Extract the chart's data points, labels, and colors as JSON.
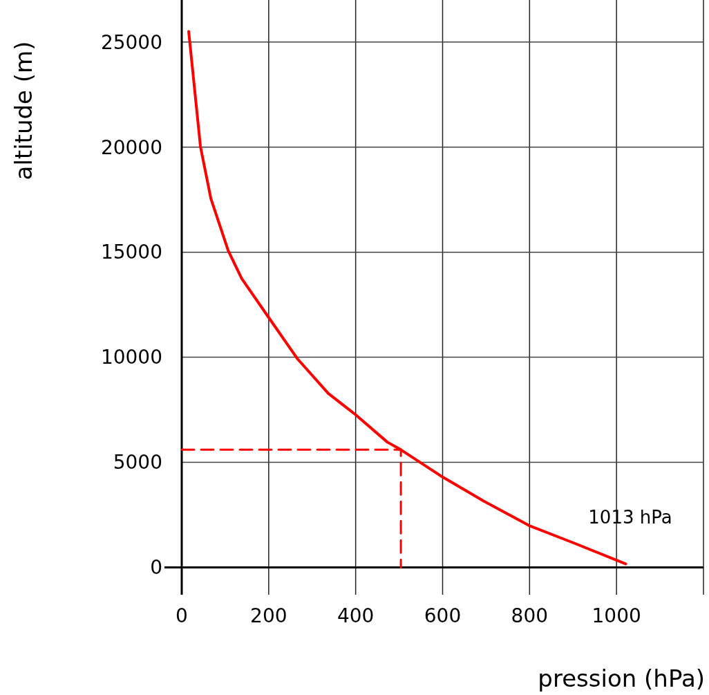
{
  "chart_data": {
    "type": "line",
    "xlabel": "pression (hPa)",
    "ylabel": "altitude (m)",
    "xlim": [
      0,
      1200
    ],
    "ylim": [
      -1300,
      27000
    ],
    "xticks": [
      0,
      200,
      400,
      600,
      800,
      1000,
      {
        "value": 1200,
        "label": null
      }
    ],
    "yticks": [
      0,
      5000,
      10000,
      15000,
      20000,
      25000
    ],
    "grid": true,
    "series": [
      {
        "color": "#ff0000",
        "x": [
          16,
          43,
          67,
          107,
          138,
          199,
          266,
          337,
          399,
          473,
          504,
          600,
          695,
          799,
          902,
          1021
        ],
        "values": [
          25500,
          20030,
          17550,
          15070,
          13740,
          11920,
          9930,
          8280,
          7280,
          5960,
          5600,
          4300,
          3150,
          1990,
          1160,
          170
        ],
        "line_style": "solid"
      },
      {
        "color": "#ff0000",
        "x": [
          0,
          504,
          504
        ],
        "values": [
          5600,
          5600,
          0
        ],
        "line_style": "dashed"
      }
    ],
    "annotations": [
      "1013 hPa"
    ]
  }
}
